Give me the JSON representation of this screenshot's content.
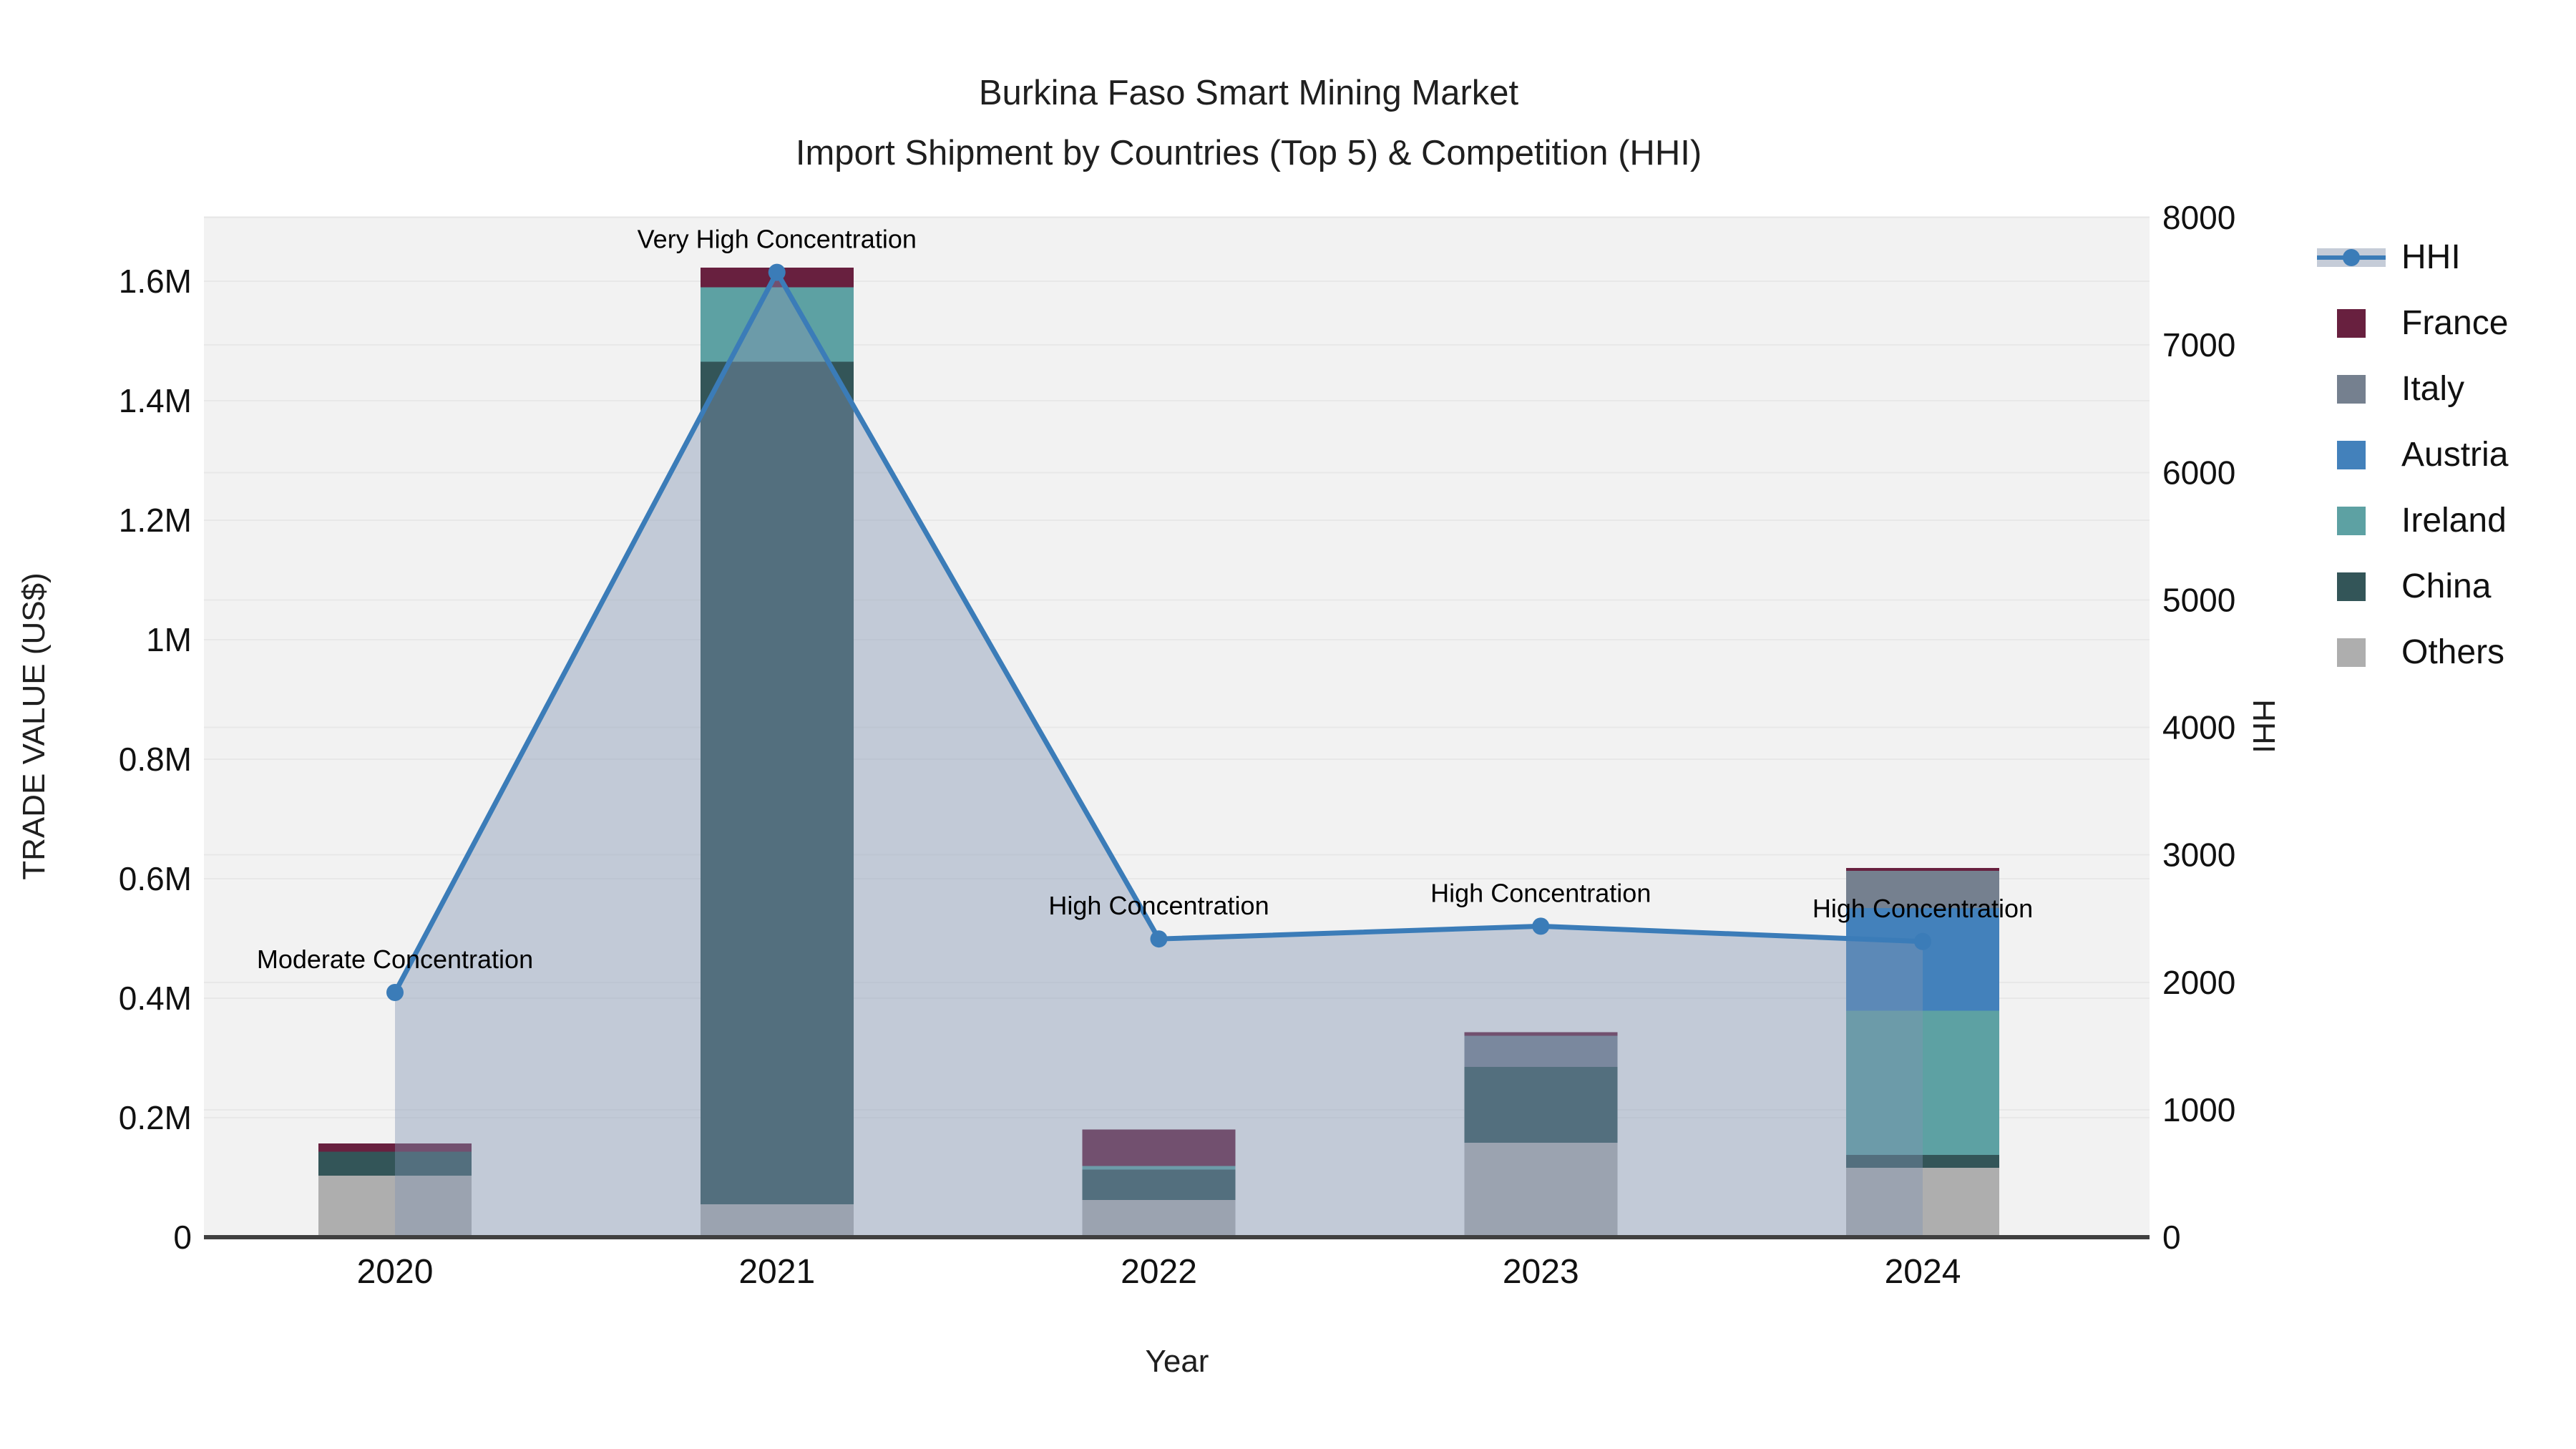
{
  "title": {
    "line1": "Burkina Faso Smart Mining Market",
    "line2": "Import Shipment by Countries (Top 5) & Competition (HHI)"
  },
  "axes": {
    "left": {
      "label": "TRADE VALUE (US$)",
      "ticks": [
        "0",
        "0.2M",
        "0.4M",
        "0.6M",
        "0.8M",
        "1M",
        "1.2M",
        "1.4M",
        "1.6M"
      ]
    },
    "right": {
      "label": "HHI",
      "ticks": [
        "0",
        "1000",
        "2000",
        "3000",
        "4000",
        "5000",
        "6000",
        "7000",
        "8000"
      ]
    },
    "x": {
      "label": "Year"
    }
  },
  "legend": [
    {
      "name": "HHI",
      "kind": "line",
      "color": "#3b7cb8",
      "band_color": "#c5ccd8"
    },
    {
      "name": "France",
      "kind": "square",
      "color": "#68203f"
    },
    {
      "name": "Italy",
      "kind": "square",
      "color": "#75808f"
    },
    {
      "name": "Austria",
      "kind": "square",
      "color": "#4381bb"
    },
    {
      "name": "Ireland",
      "kind": "square",
      "color": "#5da1a3"
    },
    {
      "name": "China",
      "kind": "square",
      "color": "#335558"
    },
    {
      "name": "Others",
      "kind": "square",
      "color": "#aeaeae"
    }
  ],
  "chart_data": {
    "type": "bar",
    "subtype": "stacked-bars-with-line-overlay",
    "title": "Burkina Faso Smart Mining Market — Import Shipment by Countries (Top 5) & Competition (HHI)",
    "xlabel": "Year",
    "ylabel_left": "TRADE VALUE (US$)",
    "ylabel_right": "HHI",
    "categories": [
      "2020",
      "2021",
      "2022",
      "2023",
      "2024"
    ],
    "series": [
      {
        "name": "Others",
        "color": "#aeaeae",
        "values": [
          103000,
          55000,
          62000,
          158000,
          116000
        ]
      },
      {
        "name": "China",
        "color": "#335558",
        "values": [
          40000,
          1410000,
          51000,
          127000,
          22000
        ]
      },
      {
        "name": "Ireland",
        "color": "#5da1a3",
        "values": [
          0,
          125000,
          6000,
          0,
          241000
        ]
      },
      {
        "name": "Austria",
        "color": "#4381bb",
        "values": [
          0,
          0,
          0,
          0,
          172000
        ]
      },
      {
        "name": "Italy",
        "color": "#75808f",
        "values": [
          0,
          0,
          0,
          52000,
          62000
        ]
      },
      {
        "name": "France",
        "color": "#68203f",
        "values": [
          14000,
          33000,
          61000,
          6000,
          5000
        ]
      }
    ],
    "hhi_line": {
      "name": "HHI",
      "axis": "right",
      "values": [
        1920,
        7570,
        2340,
        2440,
        2320
      ],
      "color": "#3b7cb8",
      "area_fill": "rgba(128,148,178,0.42)",
      "markers": true
    },
    "annotations": [
      "Moderate Concentration",
      "Very High Concentration",
      "High Concentration",
      "High Concentration",
      "High Concentration"
    ],
    "ylim_left": [
      0,
      1710000
    ],
    "ylim_right": [
      0,
      8000
    ],
    "grid": true,
    "legend_position": "right",
    "style": {
      "plot_bg": "#f2f2f2",
      "grid_color": "#e8e8e8",
      "axis_line": "#404040"
    }
  }
}
